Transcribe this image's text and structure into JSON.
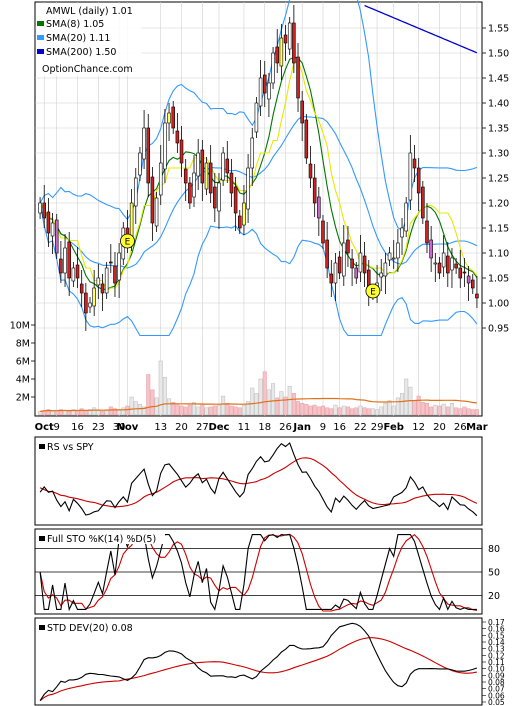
{
  "chart_data": {
    "type": "candlestick",
    "ticker_label": "AMWL (daily) 1.01",
    "watermark": "OptionChance.com",
    "legend": [
      {
        "label": "SMA(8) 1.05",
        "color": "#007700"
      },
      {
        "label": "SMA(20) 1.11",
        "color": "#3399ff"
      },
      {
        "label": "SMA(200) 1.50",
        "color": "#0000cc"
      }
    ],
    "price_axis": {
      "ticks": [
        "1.55",
        "1.50",
        "1.45",
        "1.40",
        "1.35",
        "1.30",
        "1.25",
        "1.20",
        "1.15",
        "1.10",
        "1.05",
        "1.00",
        "0.95"
      ],
      "ylim": [
        0.93,
        1.59
      ]
    },
    "volume_axis": {
      "ticks": [
        "10M",
        "8M",
        "6M",
        "4M",
        "2M"
      ],
      "ylim": [
        0,
        10
      ]
    },
    "x_labels": [
      {
        "t": "Oct",
        "i": 1,
        "bold": true
      },
      {
        "t": "9",
        "i": 4,
        "bold": false
      },
      {
        "t": "16",
        "i": 9,
        "bold": false
      },
      {
        "t": "23",
        "i": 14,
        "bold": false
      },
      {
        "t": "30",
        "i": 19,
        "bold": false
      },
      {
        "t": "Nov",
        "i": 21,
        "bold": true
      },
      {
        "t": "13",
        "i": 29,
        "bold": false
      },
      {
        "t": "20",
        "i": 34,
        "bold": false
      },
      {
        "t": "27",
        "i": 39,
        "bold": false
      },
      {
        "t": "Dec",
        "i": 43,
        "bold": true
      },
      {
        "t": "11",
        "i": 49,
        "bold": false
      },
      {
        "t": "18",
        "i": 54,
        "bold": false
      },
      {
        "t": "26",
        "i": 59,
        "bold": false
      },
      {
        "t": "Jan",
        "i": 63,
        "bold": true
      },
      {
        "t": "9",
        "i": 68,
        "bold": false
      },
      {
        "t": "16",
        "i": 72,
        "bold": false
      },
      {
        "t": "22",
        "i": 77,
        "bold": false
      },
      {
        "t": "29",
        "i": 81,
        "bold": false
      },
      {
        "t": "Feb",
        "i": 85,
        "bold": true
      },
      {
        "t": "12",
        "i": 91,
        "bold": false
      },
      {
        "t": "20",
        "i": 96,
        "bold": false
      },
      {
        "t": "26",
        "i": 101,
        "bold": false
      },
      {
        "t": "Mar",
        "i": 105,
        "bold": true
      }
    ],
    "close": [
      1.2,
      1.17,
      1.14,
      1.16,
      1.1,
      1.06,
      1.11,
      1.05,
      1.07,
      1.05,
      1.02,
      0.98,
      1.0,
      1.03,
      1.05,
      1.02,
      1.07,
      1.08,
      1.04,
      1.1,
      1.15,
      1.12,
      1.2,
      1.25,
      1.3,
      1.35,
      1.24,
      1.16,
      1.21,
      1.28,
      1.36,
      1.38,
      1.35,
      1.32,
      1.28,
      1.24,
      1.2,
      1.26,
      1.3,
      1.24,
      1.28,
      1.22,
      1.19,
      1.24,
      1.3,
      1.26,
      1.22,
      1.18,
      1.15,
      1.2,
      1.27,
      1.33,
      1.4,
      1.45,
      1.42,
      1.44,
      1.5,
      1.48,
      1.53,
      1.52,
      1.56,
      1.48,
      1.41,
      1.36,
      1.29,
      1.25,
      1.2,
      1.17,
      1.12,
      1.07,
      1.04,
      1.08,
      1.06,
      1.12,
      1.1,
      1.07,
      1.05,
      1.1,
      1.06,
      1.03,
      1.02,
      1.04,
      1.06,
      1.08,
      1.1,
      1.09,
      1.12,
      1.15,
      1.2,
      1.3,
      1.27,
      1.22,
      1.17,
      1.12,
      1.09,
      1.08,
      1.06,
      1.1,
      1.06,
      1.09,
      1.07,
      1.05,
      1.06,
      1.04,
      1.03,
      1.01
    ],
    "sma8_label_value": 1.05,
    "sma20_label_value": 1.11,
    "sma200_label_value": 1.5,
    "earnings_markers": [
      {
        "label": "E",
        "i": 21
      },
      {
        "label": "E",
        "i": 80
      }
    ],
    "volume_m": [
      0.4,
      0.5,
      0.6,
      0.4,
      0.5,
      0.6,
      0.5,
      0.4,
      0.6,
      0.5,
      0.7,
      0.5,
      0.6,
      0.8,
      0.5,
      0.4,
      0.6,
      0.9,
      0.7,
      0.6,
      0.8,
      1.0,
      2.0,
      1.5,
      1.2,
      0.9,
      4.5,
      2.8,
      1.9,
      6.0,
      4.2,
      1.8,
      1.4,
      1.2,
      1.0,
      0.9,
      1.1,
      1.4,
      0.9,
      1.2,
      0.8,
      0.9,
      1.0,
      1.1,
      2.1,
      1.3,
      1.0,
      0.9,
      0.8,
      1.1,
      1.5,
      3.0,
      2.4,
      4.0,
      4.8,
      2.8,
      3.5,
      1.9,
      2.6,
      2.0,
      3.2,
      2.4,
      1.5,
      1.3,
      1.2,
      1.0,
      1.1,
      0.9,
      1.0,
      0.8,
      0.7,
      1.1,
      0.8,
      1.0,
      0.9,
      0.7,
      0.8,
      1.0,
      0.8,
      0.7,
      0.7,
      0.6,
      0.9,
      1.3,
      1.6,
      1.0,
      1.9,
      2.4,
      4.0,
      3.1,
      1.6,
      2.1,
      1.4,
      1.3,
      0.9,
      1.1,
      1.0,
      1.2,
      0.9,
      1.3,
      0.8,
      0.7,
      0.9,
      0.7,
      0.6,
      0.6
    ],
    "rs_panel": {
      "label": "RS vs SPY"
    },
    "sto_panel": {
      "label": "Full STO %K(14) %D(5)",
      "ticks": [
        "80",
        "50",
        "20"
      ]
    },
    "std_panel": {
      "label": "STD DEV(20) 0.08",
      "ticks": [
        "0.17",
        "0.16",
        "0.15",
        "0.14",
        "0.13",
        "0.12",
        "0.11",
        "0.10",
        "0.09",
        "0.08",
        "0.07",
        "0.06",
        "0.05"
      ]
    }
  }
}
